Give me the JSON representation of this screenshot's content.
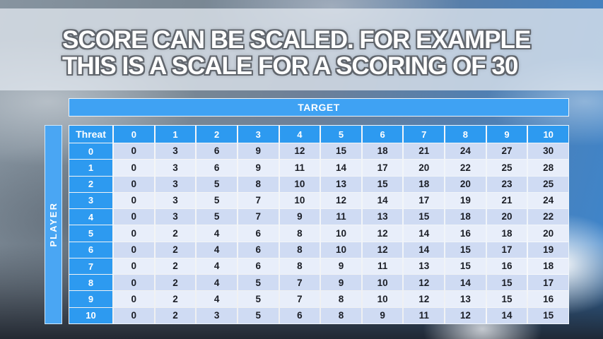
{
  "slide": {
    "title_line1": "SCORE CAN BE SCALED. FOR EXAMPLE",
    "title_line2": "THIS IS A SCALE FOR A SCORING OF 30"
  },
  "table": {
    "target_label": "TARGET",
    "player_label": "PLAYER",
    "corner_label": "Threat",
    "column_headers": [
      "0",
      "1",
      "2",
      "3",
      "4",
      "5",
      "6",
      "7",
      "8",
      "9",
      "10"
    ],
    "rows": [
      {
        "header": "0",
        "values": [
          0,
          3,
          6,
          9,
          12,
          15,
          18,
          21,
          24,
          27,
          30
        ]
      },
      {
        "header": "1",
        "values": [
          0,
          3,
          6,
          9,
          11,
          14,
          17,
          20,
          22,
          25,
          28
        ]
      },
      {
        "header": "2",
        "values": [
          0,
          3,
          5,
          8,
          10,
          13,
          15,
          18,
          20,
          23,
          25
        ]
      },
      {
        "header": "3",
        "values": [
          0,
          3,
          5,
          7,
          10,
          12,
          14,
          17,
          19,
          21,
          24
        ]
      },
      {
        "header": "4",
        "values": [
          0,
          3,
          5,
          7,
          9,
          11,
          13,
          15,
          18,
          20,
          22
        ]
      },
      {
        "header": "5",
        "values": [
          0,
          2,
          4,
          6,
          8,
          10,
          12,
          14,
          16,
          18,
          20
        ]
      },
      {
        "header": "6",
        "values": [
          0,
          2,
          4,
          6,
          8,
          10,
          12,
          14,
          15,
          17,
          19
        ]
      },
      {
        "header": "7",
        "values": [
          0,
          2,
          4,
          6,
          8,
          9,
          11,
          13,
          15,
          16,
          18
        ]
      },
      {
        "header": "8",
        "values": [
          0,
          2,
          4,
          5,
          7,
          9,
          10,
          12,
          14,
          15,
          17
        ]
      },
      {
        "header": "9",
        "values": [
          0,
          2,
          4,
          5,
          7,
          8,
          10,
          12,
          13,
          15,
          16
        ]
      },
      {
        "header": "10",
        "values": [
          0,
          2,
          3,
          5,
          6,
          8,
          9,
          11,
          12,
          14,
          15
        ]
      }
    ]
  },
  "colors": {
    "header_blue": "#2d9af0",
    "target_blue": "#3fa2f3",
    "player_blue": "#4aa6f3",
    "row_even": "#cfdbf3",
    "row_odd": "#e8eefa",
    "cell_text": "#1b1e26",
    "title_text": "#ffffff",
    "title_outline": "#61666d"
  }
}
